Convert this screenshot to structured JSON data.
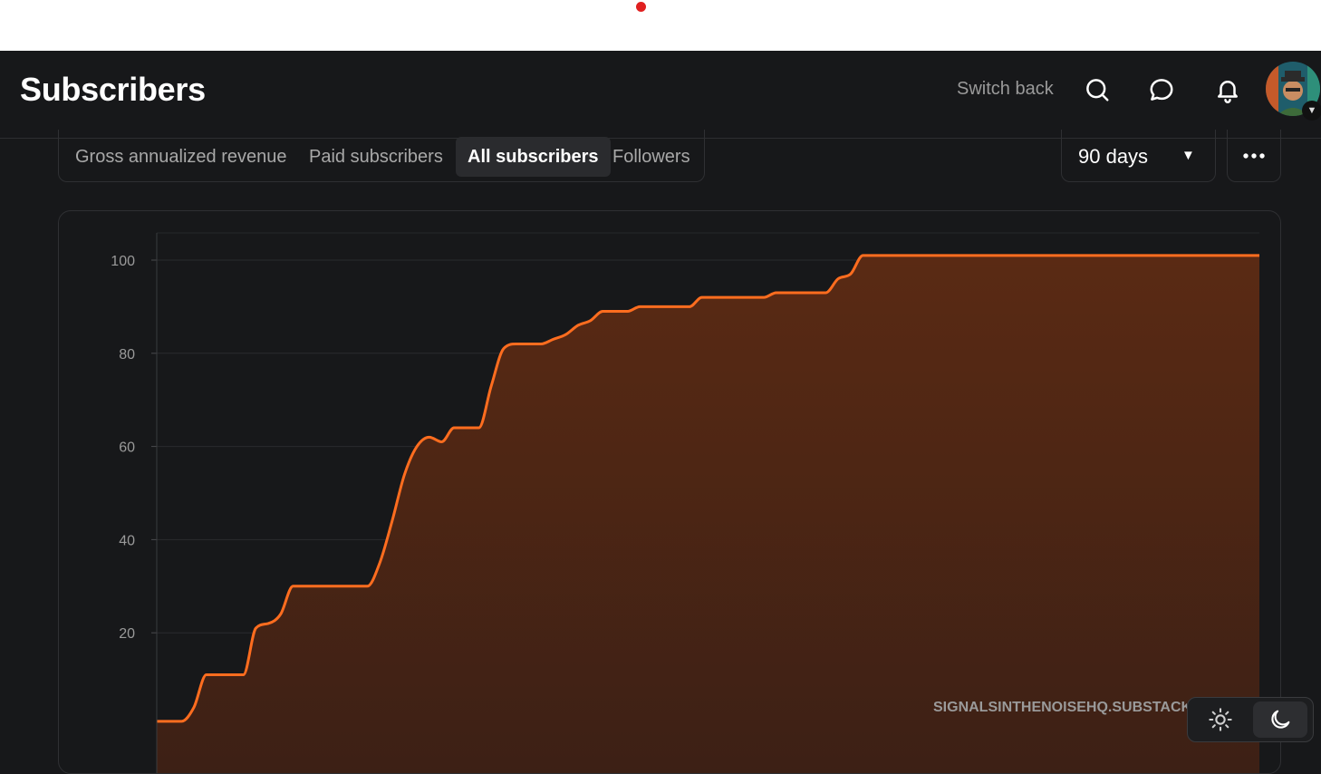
{
  "header": {
    "title": "Subscribers",
    "switch_back": "Switch back",
    "icons": [
      "search-icon",
      "chat-icon",
      "bell-icon"
    ]
  },
  "tabs": [
    {
      "label": "Gross annualized revenue",
      "active": false
    },
    {
      "label": "Paid subscribers",
      "active": false
    },
    {
      "label": "All subscribers",
      "active": true
    },
    {
      "label": "Followers",
      "active": false
    }
  ],
  "range": {
    "label": "90 days"
  },
  "watermark": {
    "text": "SIGNALSINTHENOISEHQ.SUBSTACK.COM"
  },
  "theme": {
    "active": "dark"
  },
  "colors": {
    "accent": "#ff6d1f",
    "background": "#17181a"
  },
  "chart_data": {
    "type": "area",
    "title": "",
    "xlabel": "",
    "ylabel": "",
    "y_ticks": [
      20,
      40,
      60,
      80,
      100
    ],
    "ylim": [
      0,
      105
    ],
    "grid": true,
    "x": [
      0,
      1,
      2,
      3,
      4,
      5,
      6,
      7,
      8,
      9,
      10,
      11,
      12,
      13,
      14,
      15,
      16,
      17,
      18,
      19,
      20,
      21,
      22,
      23,
      24,
      25,
      26,
      27,
      28,
      29,
      30,
      31,
      32,
      33,
      34,
      35,
      36,
      37,
      38,
      39,
      40,
      41,
      42,
      43,
      44,
      45,
      46,
      47,
      48,
      49,
      50,
      51,
      52,
      53,
      54,
      55,
      56,
      57,
      58,
      59,
      60,
      61,
      62,
      63,
      64,
      65,
      66,
      67,
      68,
      69,
      70,
      71,
      72,
      73,
      74,
      75,
      76,
      77,
      78,
      79,
      80,
      81,
      82,
      83,
      84,
      85,
      86,
      87,
      88,
      89
    ],
    "series": [
      {
        "values": [
          1,
          1,
          1,
          4,
          11,
          11,
          11,
          11,
          21,
          22,
          24,
          30,
          30,
          30,
          30,
          30,
          30,
          30,
          35,
          44,
          54,
          60,
          62,
          61,
          64,
          64,
          64,
          73,
          81,
          82,
          82,
          82,
          83,
          84,
          86,
          87,
          89,
          89,
          89,
          90,
          90,
          90,
          90,
          90,
          92,
          92,
          92,
          92,
          92,
          92,
          93,
          93,
          93,
          93,
          93,
          96,
          97,
          101,
          101,
          101,
          101,
          101,
          101,
          101,
          101,
          101,
          101,
          101,
          101,
          101,
          101,
          101,
          101,
          101,
          101,
          101,
          101,
          101,
          101,
          101,
          101,
          101,
          101,
          101,
          101,
          101,
          101,
          101,
          101,
          101
        ]
      }
    ]
  }
}
